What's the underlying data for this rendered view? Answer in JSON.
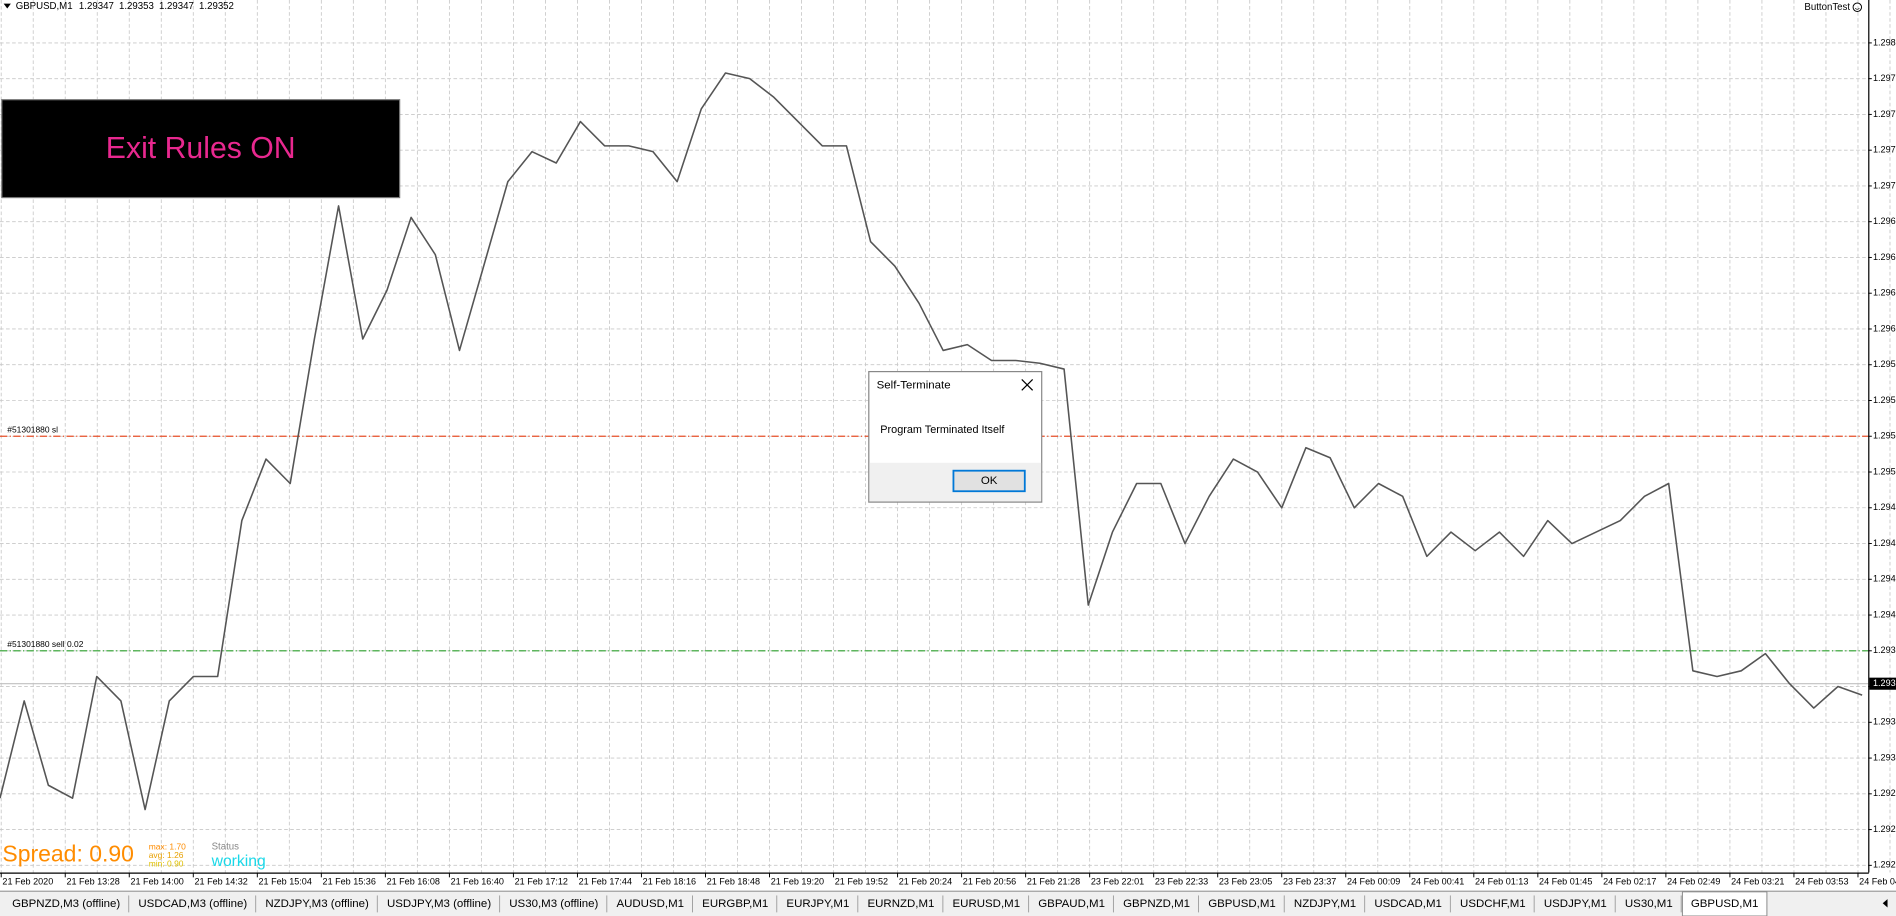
{
  "window": {
    "symbol": "GBPUSD,M1",
    "ohlc": [
      1.29347,
      1.29353,
      1.29347,
      1.29352
    ],
    "indicator": "ButtonTest"
  },
  "chart_data": {
    "type": "line",
    "color": "#555555",
    "grid": true,
    "ylim": [
      1.2922,
      1.2983
    ],
    "yticks": [
      {
        "value": 1.298,
        "label": "1.298"
      },
      {
        "value": 1.29775,
        "label": "1.297"
      },
      {
        "value": 1.2975,
        "label": "1.297"
      },
      {
        "value": 1.29725,
        "label": "1.297"
      },
      {
        "value": 1.297,
        "label": "1.297"
      },
      {
        "value": 1.29675,
        "label": "1.296"
      },
      {
        "value": 1.2965,
        "label": "1.296"
      },
      {
        "value": 1.29625,
        "label": "1.296"
      },
      {
        "value": 1.296,
        "label": "1.296"
      },
      {
        "value": 1.29575,
        "label": "1.295"
      },
      {
        "value": 1.2955,
        "label": "1.295"
      },
      {
        "value": 1.29525,
        "label": "1.295"
      },
      {
        "value": 1.295,
        "label": "1.295"
      },
      {
        "value": 1.29475,
        "label": "1.294"
      },
      {
        "value": 1.2945,
        "label": "1.294"
      },
      {
        "value": 1.29425,
        "label": "1.294"
      },
      {
        "value": 1.294,
        "label": "1.294"
      },
      {
        "value": 1.29375,
        "label": "1.293"
      },
      {
        "value": 1.2935,
        "label": "1.293"
      },
      {
        "value": 1.29325,
        "label": "1.293"
      },
      {
        "value": 1.293,
        "label": "1.293"
      },
      {
        "value": 1.29275,
        "label": "1.292"
      },
      {
        "value": 1.2925,
        "label": "1.292"
      },
      {
        "value": 1.29225,
        "label": "1.292"
      }
    ],
    "values": [
      1.29272,
      1.2934,
      1.29281,
      1.29272,
      1.29357,
      1.2934,
      1.29264,
      1.2934,
      1.29357,
      1.29357,
      1.29466,
      1.29509,
      1.29492,
      1.29593,
      1.29686,
      1.29593,
      1.29627,
      1.29678,
      1.29652,
      1.29585,
      1.29644,
      1.29703,
      1.29724,
      1.29716,
      1.29745,
      1.29728,
      1.29728,
      1.29724,
      1.29703,
      1.29754,
      1.29779,
      1.29775,
      1.29762,
      1.29745,
      1.29728,
      1.29728,
      1.29661,
      1.29644,
      1.29618,
      1.29585,
      1.29589,
      1.29578,
      1.29578,
      1.29576,
      1.29572,
      1.29407,
      1.29458,
      1.29492,
      1.29492,
      1.2945,
      1.29483,
      1.29509,
      1.295,
      1.29475,
      1.29517,
      1.2951,
      1.29475,
      1.29492,
      1.29483,
      1.29441,
      1.29458,
      1.29445,
      1.29458,
      1.29441,
      1.29466,
      1.2945,
      1.29458,
      1.29466,
      1.29483,
      1.29492,
      1.29361,
      1.29357,
      1.29361,
      1.29373,
      1.29352,
      1.29335,
      1.2935,
      1.29344
    ]
  },
  "time_axis": [
    "21 Feb 2020",
    "21 Feb 13:28",
    "21 Feb 14:00",
    "21 Feb 14:32",
    "21 Feb 15:04",
    "21 Feb 15:36",
    "21 Feb 16:08",
    "21 Feb 16:40",
    "21 Feb 17:12",
    "21 Feb 17:44",
    "21 Feb 18:16",
    "21 Feb 18:48",
    "21 Feb 19:20",
    "21 Feb 19:52",
    "21 Feb 20:24",
    "21 Feb 20:56",
    "21 Feb 21:28",
    "23 Feb 22:01",
    "23 Feb 22:33",
    "23 Feb 23:05",
    "23 Feb 23:37",
    "24 Feb 00:09",
    "24 Feb 00:41",
    "24 Feb 01:13",
    "24 Feb 01:45",
    "24 Feb 02:17",
    "24 Feb 02:49",
    "24 Feb 03:21",
    "24 Feb 03:53",
    "24 Feb 04"
  ],
  "levels": [
    {
      "label": "#51301880 sl",
      "value": 1.29525,
      "color": "#e8502a"
    },
    {
      "label": "#51301880 sell 0.02",
      "value": 1.29375,
      "color": "#2ca02c"
    }
  ],
  "bid_label": "1.293",
  "exit_button": "Exit Rules ON",
  "spread": {
    "label": "Spread: 0.90",
    "max": "max: 1.70",
    "avg": "avg: 1.26",
    "min": "min: 0.90",
    "status_title": "Status",
    "status": "working"
  },
  "dialog": {
    "title": "Self-Terminate",
    "message": "Program Terminated Itself",
    "button": "OK"
  },
  "tabs": [
    "GBPNZD,M3 (offline)",
    "USDCAD,M3 (offline)",
    "NZDJPY,M3 (offline)",
    "USDJPY,M3 (offline)",
    "US30,M3 (offline)",
    "AUDUSD,M1",
    "EURGBP,M1",
    "EURJPY,M1",
    "EURNZD,M1",
    "EURUSD,M1",
    "GBPAUD,M1",
    "GBPNZD,M1",
    "GBPUSD,M1",
    "NZDJPY,M1",
    "USDCAD,M1",
    "USDCHF,M1",
    "USDJPY,M1",
    "US30,M1",
    "GBPUSD,M1"
  ]
}
